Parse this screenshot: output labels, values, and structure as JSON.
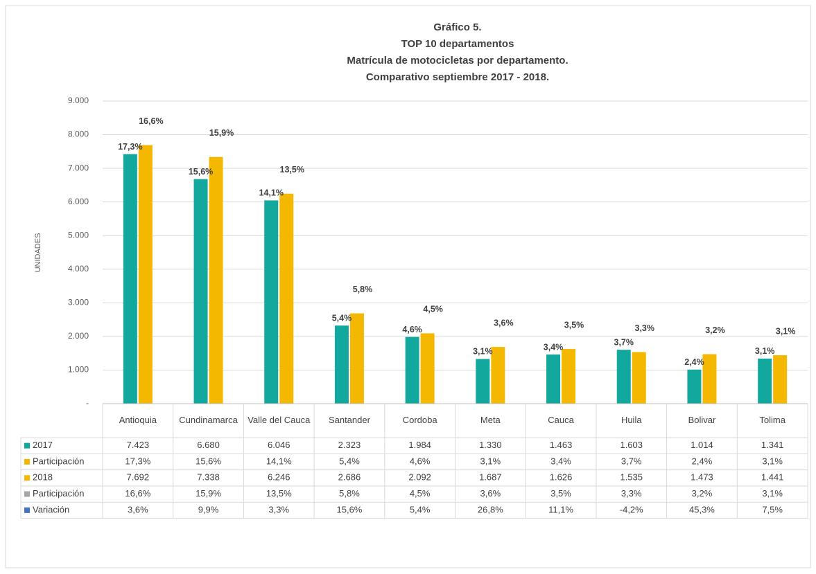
{
  "chart_data": {
    "type": "bar",
    "title": [
      "Gráfico 5.",
      "TOP 10 departamentos",
      "Matrícula de motocicletas por departamento.",
      "Comparativo septiembre 2017 - 2018."
    ],
    "y_label": "UNIDADES",
    "categories": [
      "Antioquia",
      "Cundinamarca",
      "Valle del Cauca",
      "Santander",
      "Cordoba",
      "Meta",
      "Cauca",
      "Huila",
      "Bolivar",
      "Tolima"
    ],
    "series": [
      {
        "name": "2017",
        "color": "#13a89e",
        "type": "bar",
        "values": [
          7423,
          6680,
          6046,
          2323,
          1984,
          1330,
          1463,
          1603,
          1014,
          1341
        ],
        "value_labels": [
          "7.423",
          "6.680",
          "6.046",
          "2.323",
          "1.984",
          "1.330",
          "1.463",
          "1.603",
          "1.014",
          "1.341"
        ]
      },
      {
        "name": "Participación",
        "color": "#f5b800",
        "type": "label",
        "values": [
          17.3,
          15.6,
          14.1,
          5.4,
          4.6,
          3.1,
          3.4,
          3.7,
          2.4,
          3.1
        ],
        "value_labels": [
          "17,3%",
          "15,6%",
          "14,1%",
          "5,4%",
          "4,6%",
          "3,1%",
          "3,4%",
          "3,7%",
          "2,4%",
          "3,1%"
        ]
      },
      {
        "name": "2018",
        "color": "#f5b800",
        "type": "bar",
        "values": [
          7692,
          7338,
          6246,
          2686,
          2092,
          1687,
          1626,
          1535,
          1473,
          1441
        ],
        "value_labels": [
          "7.692",
          "7.338",
          "6.246",
          "2.686",
          "2.092",
          "1.687",
          "1.626",
          "1.535",
          "1.473",
          "1.441"
        ]
      },
      {
        "name": "Participación",
        "color": "#a5a5a5",
        "type": "label",
        "values": [
          16.6,
          15.9,
          13.5,
          5.8,
          4.5,
          3.6,
          3.5,
          3.3,
          3.2,
          3.1
        ],
        "value_labels": [
          "16,6%",
          "15,9%",
          "13,5%",
          "5,8%",
          "4,5%",
          "3,6%",
          "3,5%",
          "3,3%",
          "3,2%",
          "3,1%"
        ]
      },
      {
        "name": "Variación",
        "color": "#4472c4",
        "type": "table",
        "values": [
          3.6,
          9.9,
          3.3,
          15.6,
          5.4,
          26.8,
          11.1,
          -4.2,
          45.3,
          7.5
        ],
        "value_labels": [
          "3,6%",
          "9,9%",
          "3,3%",
          "15,6%",
          "5,4%",
          "26,8%",
          "11,1%",
          "-4,2%",
          "45,3%",
          "7,5%"
        ]
      }
    ],
    "ylim": [
      0,
      9000
    ],
    "yticks": [
      {
        "value": 0,
        "label": "-"
      },
      {
        "value": 1000,
        "label": "1.000"
      },
      {
        "value": 2000,
        "label": "2.000"
      },
      {
        "value": 3000,
        "label": "3.000"
      },
      {
        "value": 4000,
        "label": "4.000"
      },
      {
        "value": 5000,
        "label": "5.000"
      },
      {
        "value": 6000,
        "label": "6.000"
      },
      {
        "value": 7000,
        "label": "7.000"
      },
      {
        "value": 8000,
        "label": "8.000"
      },
      {
        "value": 9000,
        "label": "9.000"
      }
    ],
    "grid": true
  }
}
